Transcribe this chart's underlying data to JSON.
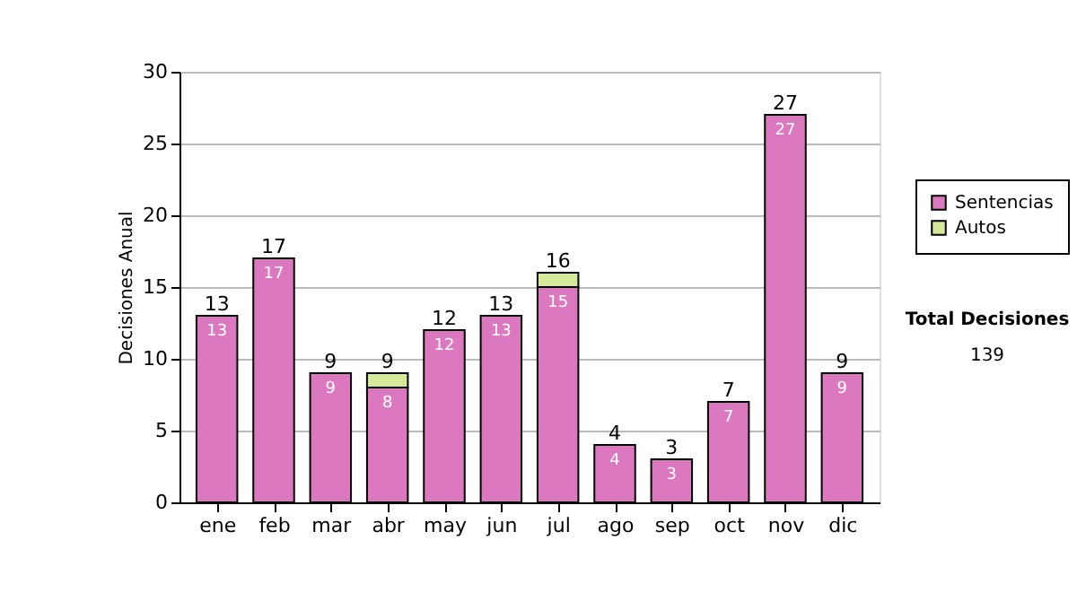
{
  "chart_data": {
    "type": "bar",
    "stacked": true,
    "ylabel": "Decisiones Anual",
    "categories": [
      "ene",
      "feb",
      "mar",
      "abr",
      "may",
      "jun",
      "jul",
      "ago",
      "sep",
      "oct",
      "nov",
      "dic"
    ],
    "series": [
      {
        "name": "Sentencias",
        "color": "#dc78c0",
        "values": [
          13,
          17,
          9,
          8,
          12,
          13,
          15,
          4,
          3,
          7,
          27,
          9
        ],
        "value_labels": [
          "13",
          "17",
          "9",
          "8",
          "12",
          "13",
          "15",
          "4",
          "3",
          "7",
          "27",
          "9"
        ]
      },
      {
        "name": "Autos",
        "color": "#d4ea98",
        "values": [
          null,
          null,
          null,
          1,
          null,
          null,
          1,
          null,
          null,
          null,
          null,
          null
        ]
      }
    ],
    "totals": [
      "13",
      "17",
      "9",
      "9",
      "12",
      "13",
      "16",
      "4",
      "3",
      "7",
      "27",
      "9"
    ],
    "ylim": [
      0,
      30
    ],
    "yticks": [
      0,
      5,
      10,
      15,
      20,
      25,
      30
    ],
    "grid": "y",
    "legend": "right",
    "annotations": [
      "Total Decisiones",
      "139"
    ]
  }
}
